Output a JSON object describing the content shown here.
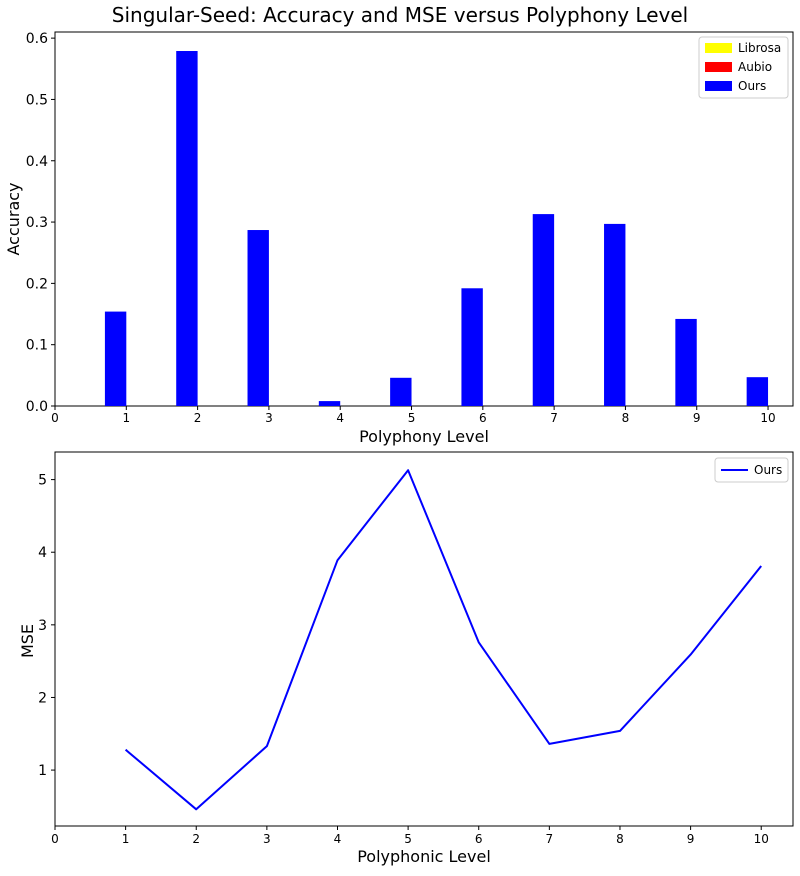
{
  "figure": {
    "title": "Singular-Seed: Accuracy and MSE versus Polyphony Level"
  },
  "colors": {
    "librosa": "#ffff00",
    "aubio": "#ff0000",
    "ours": "#0000ff"
  },
  "chart_data": [
    {
      "type": "bar",
      "title": "Singular-Seed: Accuracy and MSE versus Polyphony Level",
      "xlabel": "Polyphony Level",
      "ylabel": "Accuracy",
      "xlim": [
        0,
        10.35
      ],
      "ylim": [
        0,
        0.61
      ],
      "x_ticks": [
        0,
        1,
        2,
        3,
        4,
        5,
        6,
        7,
        8,
        9,
        10
      ],
      "y_ticks": [
        0.0,
        0.1,
        0.2,
        0.3,
        0.4,
        0.5,
        0.6
      ],
      "y_tick_labels": [
        "0.0",
        "0.1",
        "0.2",
        "0.3",
        "0.4",
        "0.5",
        "0.6"
      ],
      "categories": [
        1,
        2,
        3,
        4,
        5,
        6,
        7,
        8,
        9,
        10
      ],
      "series": [
        {
          "name": "Librosa",
          "color": "#ffff00",
          "values": [
            0,
            0,
            0,
            0,
            0,
            0,
            0,
            0,
            0,
            0
          ]
        },
        {
          "name": "Aubio",
          "color": "#ff0000",
          "values": [
            0,
            0,
            0,
            0,
            0,
            0,
            0,
            0,
            0,
            0
          ]
        },
        {
          "name": "Ours",
          "color": "#0000ff",
          "values": [
            0.154,
            0.579,
            0.287,
            0.008,
            0.046,
            0.192,
            0.313,
            0.297,
            0.142,
            0.047
          ]
        }
      ],
      "legend": {
        "placement": "top-right",
        "entries": [
          "Librosa",
          "Aubio",
          "Ours"
        ]
      },
      "grid": false
    },
    {
      "type": "line",
      "xlabel": "Polyphonic Level",
      "ylabel": "MSE",
      "xlim": [
        0,
        10.45
      ],
      "ylim": [
        0.23,
        5.38
      ],
      "x_ticks": [
        0,
        1,
        2,
        3,
        4,
        5,
        6,
        7,
        8,
        9,
        10
      ],
      "y_ticks": [
        1,
        2,
        3,
        4,
        5
      ],
      "x": [
        1,
        2,
        3,
        4,
        5,
        6,
        7,
        8,
        9,
        10
      ],
      "series": [
        {
          "name": "Ours",
          "color": "#0000ff",
          "values": [
            1.28,
            0.46,
            1.33,
            3.89,
            5.13,
            2.76,
            1.36,
            1.54,
            2.59,
            3.81
          ]
        }
      ],
      "legend": {
        "placement": "top-right",
        "entries": [
          "Ours"
        ]
      },
      "grid": false
    }
  ]
}
